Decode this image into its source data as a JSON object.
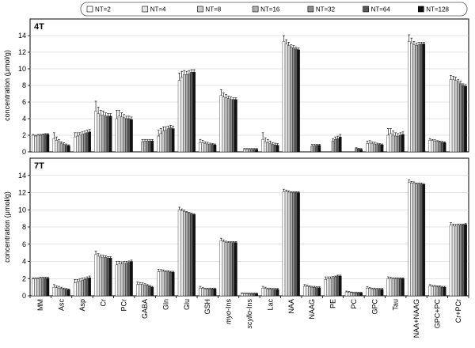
{
  "chart_data": {
    "type": "bar",
    "legend": {
      "placement": "top",
      "entries": [
        "NT=2",
        "NT=4",
        "NT=8",
        "NT=16",
        "NT=32",
        "NT=64",
        "NT=128"
      ]
    },
    "colors": [
      "#ffffff",
      "#e6e6e6",
      "#cccccc",
      "#b0b0b0",
      "#8c8c8c",
      "#595959",
      "#111111"
    ],
    "categories": [
      {
        "label": "MM",
        "italic_prefix": ""
      },
      {
        "label": "Asc",
        "italic_prefix": ""
      },
      {
        "label": "Asp",
        "italic_prefix": ""
      },
      {
        "label": "Cr",
        "italic_prefix": ""
      },
      {
        "label": "PCr",
        "italic_prefix": ""
      },
      {
        "label": "GABA",
        "italic_prefix": ""
      },
      {
        "label": "Gln",
        "italic_prefix": ""
      },
      {
        "label": "Glu",
        "italic_prefix": ""
      },
      {
        "label": "GSH",
        "italic_prefix": ""
      },
      {
        "label": "-Ins",
        "italic_prefix": "myo"
      },
      {
        "label": "-Ins",
        "italic_prefix": "scyllo"
      },
      {
        "label": "Lac",
        "italic_prefix": ""
      },
      {
        "label": "NAA",
        "italic_prefix": ""
      },
      {
        "label": "NAAG",
        "italic_prefix": ""
      },
      {
        "label": "PE",
        "italic_prefix": ""
      },
      {
        "label": "PC",
        "italic_prefix": ""
      },
      {
        "label": "GPC",
        "italic_prefix": ""
      },
      {
        "label": "Tau",
        "italic_prefix": ""
      },
      {
        "label": "NAA+NAAG",
        "italic_prefix": ""
      },
      {
        "label": "GPC+PC",
        "italic_prefix": ""
      },
      {
        "label": "Cr+PCr",
        "italic_prefix": ""
      }
    ],
    "ylabel": "concentration (μmol/g)",
    "ylim": [
      0,
      16
    ],
    "yticks": [
      0,
      2,
      4,
      6,
      8,
      10,
      12,
      14
    ],
    "grid": true,
    "panels": [
      {
        "title": "4T",
        "values": [
          [
            2.0,
            1.9,
            2.0,
            2.0,
            2.05,
            2.1,
            2.1
          ],
          [
            1.6,
            1.4,
            1.2,
            1.0,
            0.9,
            0.8,
            0.75
          ],
          [
            1.8,
            1.9,
            2.0,
            2.1,
            2.2,
            2.3,
            2.4
          ],
          [
            4.9,
            4.6,
            4.4,
            4.4,
            4.3,
            4.3,
            4.3
          ],
          [
            4.0,
            4.3,
            4.2,
            4.1,
            4.0,
            4.0,
            3.9
          ],
          [
            0,
            0,
            1.2,
            1.3,
            1.3,
            1.3,
            1.3
          ],
          [
            1.9,
            2.2,
            2.5,
            2.6,
            2.8,
            2.9,
            2.8
          ],
          [
            8.6,
            9.0,
            9.3,
            9.3,
            9.4,
            9.6,
            9.6
          ],
          [
            1.1,
            1.1,
            1.0,
            0.95,
            0.9,
            0.9,
            0.85
          ],
          [
            6.8,
            6.6,
            6.5,
            6.4,
            6.3,
            6.3,
            6.3
          ],
          [
            0,
            0.3,
            0.3,
            0.3,
            0.3,
            0.3,
            0.3
          ],
          [
            1.5,
            1.2,
            1.1,
            1.0,
            0.9,
            0.85,
            0.8
          ],
          [
            13.3,
            13.0,
            12.8,
            12.6,
            12.5,
            12.4,
            12.3
          ],
          [
            0,
            0,
            0,
            0.7,
            0.75,
            0.8,
            0.8
          ],
          [
            0,
            0,
            0,
            1.3,
            1.5,
            1.6,
            1.8
          ],
          [
            0,
            0,
            0,
            0,
            0.4,
            0.35,
            0.3
          ],
          [
            1.0,
            1.05,
            1.0,
            0.95,
            0.9,
            0.9,
            0.85
          ],
          [
            2.0,
            2.2,
            2.0,
            1.9,
            1.9,
            2.0,
            2.1
          ],
          [
            13.3,
            13.1,
            12.9,
            12.8,
            12.9,
            13.0,
            13.0
          ],
          [
            1.4,
            1.35,
            1.3,
            1.25,
            1.2,
            1.15,
            1.1
          ],
          [
            8.7,
            8.7,
            8.6,
            8.4,
            8.2,
            8.0,
            7.9
          ]
        ],
        "errors": [
          [
            0.1,
            0.1,
            0.1,
            0.1,
            0.1,
            0.1,
            0.1
          ],
          [
            0.7,
            0.4,
            0.3,
            0.2,
            0.2,
            0.15,
            0.1
          ],
          [
            0.5,
            0.4,
            0.3,
            0.3,
            0.3,
            0.3,
            0.3
          ],
          [
            1.2,
            0.8,
            0.6,
            0.5,
            0.4,
            0.3,
            0.3
          ],
          [
            1.0,
            0.7,
            0.5,
            0.4,
            0.3,
            0.3,
            0.3
          ],
          [
            0,
            0,
            0.3,
            0.2,
            0.2,
            0.2,
            0.2
          ],
          [
            0.7,
            0.6,
            0.5,
            0.4,
            0.3,
            0.3,
            0.3
          ],
          [
            0.9,
            0.7,
            0.5,
            0.4,
            0.4,
            0.3,
            0.3
          ],
          [
            0.4,
            0.3,
            0.2,
            0.2,
            0.15,
            0.1,
            0.1
          ],
          [
            0.7,
            0.5,
            0.4,
            0.3,
            0.3,
            0.2,
            0.2
          ],
          [
            0,
            0.1,
            0.1,
            0.1,
            0.1,
            0.1,
            0.1
          ],
          [
            0.8,
            0.5,
            0.4,
            0.3,
            0.2,
            0.2,
            0.2
          ],
          [
            0.7,
            0.5,
            0.4,
            0.3,
            0.3,
            0.2,
            0.2
          ],
          [
            0,
            0,
            0,
            0.2,
            0.15,
            0.1,
            0.1
          ],
          [
            0,
            0,
            0,
            0.3,
            0.3,
            0.3,
            0.3
          ],
          [
            0,
            0,
            0,
            0,
            0.1,
            0.1,
            0.1
          ],
          [
            0.3,
            0.3,
            0.2,
            0.2,
            0.15,
            0.1,
            0.1
          ],
          [
            0.8,
            0.6,
            0.5,
            0.4,
            0.3,
            0.3,
            0.3
          ],
          [
            0.8,
            0.6,
            0.4,
            0.3,
            0.3,
            0.2,
            0.2
          ],
          [
            0.2,
            0.15,
            0.15,
            0.1,
            0.1,
            0.1,
            0.1
          ],
          [
            0.5,
            0.4,
            0.4,
            0.3,
            0.3,
            0.2,
            0.2
          ]
        ]
      },
      {
        "title": "7T",
        "values": [
          [
            1.95,
            2.0,
            2.0,
            2.05,
            2.05,
            2.05,
            2.05
          ],
          [
            1.0,
            0.95,
            0.9,
            0.85,
            0.8,
            0.75,
            0.7
          ],
          [
            1.5,
            1.6,
            1.7,
            1.8,
            1.9,
            2.0,
            2.1
          ],
          [
            4.8,
            4.6,
            4.5,
            4.5,
            4.45,
            4.4,
            4.4
          ],
          [
            3.6,
            3.7,
            3.7,
            3.8,
            3.8,
            3.9,
            4.0
          ],
          [
            1.3,
            1.35,
            1.3,
            1.25,
            1.2,
            1.1,
            1.0
          ],
          [
            2.8,
            2.85,
            2.85,
            2.8,
            2.8,
            2.75,
            2.75
          ],
          [
            10.0,
            9.9,
            9.8,
            9.7,
            9.6,
            9.5,
            9.45
          ],
          [
            0.9,
            0.85,
            0.8,
            0.8,
            0.8,
            0.8,
            0.8
          ],
          [
            6.4,
            6.3,
            6.2,
            6.2,
            6.2,
            6.2,
            6.2
          ],
          [
            0.25,
            0.25,
            0.25,
            0.25,
            0.25,
            0.25,
            0.25
          ],
          [
            0.9,
            0.85,
            0.8,
            0.8,
            0.75,
            0.75,
            0.75
          ],
          [
            12.1,
            12.1,
            12.05,
            12.0,
            12.0,
            12.0,
            12.0
          ],
          [
            1.1,
            1.1,
            1.05,
            1.0,
            1.0,
            0.95,
            0.95
          ],
          [
            1.9,
            2.0,
            2.0,
            2.1,
            2.2,
            2.3,
            2.3
          ],
          [
            0.45,
            0.4,
            0.4,
            0.35,
            0.35,
            0.35,
            0.35
          ],
          [
            0.9,
            0.85,
            0.8,
            0.8,
            0.75,
            0.75,
            0.75
          ],
          [
            2.0,
            2.0,
            2.0,
            2.0,
            2.0,
            2.0,
            2.0
          ],
          [
            13.2,
            13.1,
            13.1,
            13.0,
            13.0,
            13.0,
            12.95
          ],
          [
            1.15,
            1.1,
            1.1,
            1.05,
            1.05,
            1.0,
            1.0
          ],
          [
            8.2,
            8.1,
            8.1,
            8.2,
            8.2,
            8.25,
            8.3
          ]
        ],
        "errors": [
          [
            0.1,
            0.1,
            0.1,
            0.1,
            0.1,
            0.1,
            0.1
          ],
          [
            0.3,
            0.2,
            0.2,
            0.15,
            0.1,
            0.1,
            0.1
          ],
          [
            0.4,
            0.3,
            0.3,
            0.25,
            0.2,
            0.2,
            0.2
          ],
          [
            0.4,
            0.3,
            0.25,
            0.2,
            0.2,
            0.15,
            0.15
          ],
          [
            0.4,
            0.3,
            0.25,
            0.2,
            0.2,
            0.15,
            0.15
          ],
          [
            0.3,
            0.2,
            0.2,
            0.15,
            0.1,
            0.1,
            0.1
          ],
          [
            0.3,
            0.2,
            0.15,
            0.1,
            0.1,
            0.1,
            0.1
          ],
          [
            0.3,
            0.2,
            0.15,
            0.1,
            0.1,
            0.1,
            0.1
          ],
          [
            0.2,
            0.1,
            0.1,
            0.1,
            0.1,
            0.1,
            0.1
          ],
          [
            0.3,
            0.2,
            0.15,
            0.1,
            0.1,
            0.1,
            0.1
          ],
          [
            0.1,
            0.05,
            0.05,
            0.05,
            0.05,
            0.05,
            0.05
          ],
          [
            0.2,
            0.15,
            0.1,
            0.1,
            0.1,
            0.1,
            0.1
          ],
          [
            0.3,
            0.2,
            0.15,
            0.1,
            0.1,
            0.1,
            0.1
          ],
          [
            0.2,
            0.15,
            0.1,
            0.1,
            0.1,
            0.1,
            0.1
          ],
          [
            0.3,
            0.2,
            0.2,
            0.15,
            0.1,
            0.1,
            0.1
          ],
          [
            0.1,
            0.1,
            0.05,
            0.05,
            0.05,
            0.05,
            0.05
          ],
          [
            0.15,
            0.1,
            0.1,
            0.1,
            0.1,
            0.1,
            0.1
          ],
          [
            0.2,
            0.15,
            0.1,
            0.1,
            0.1,
            0.1,
            0.1
          ],
          [
            0.3,
            0.2,
            0.15,
            0.1,
            0.1,
            0.1,
            0.1
          ],
          [
            0.15,
            0.1,
            0.1,
            0.1,
            0.1,
            0.1,
            0.1
          ],
          [
            0.3,
            0.25,
            0.2,
            0.15,
            0.15,
            0.1,
            0.1
          ]
        ]
      }
    ]
  }
}
